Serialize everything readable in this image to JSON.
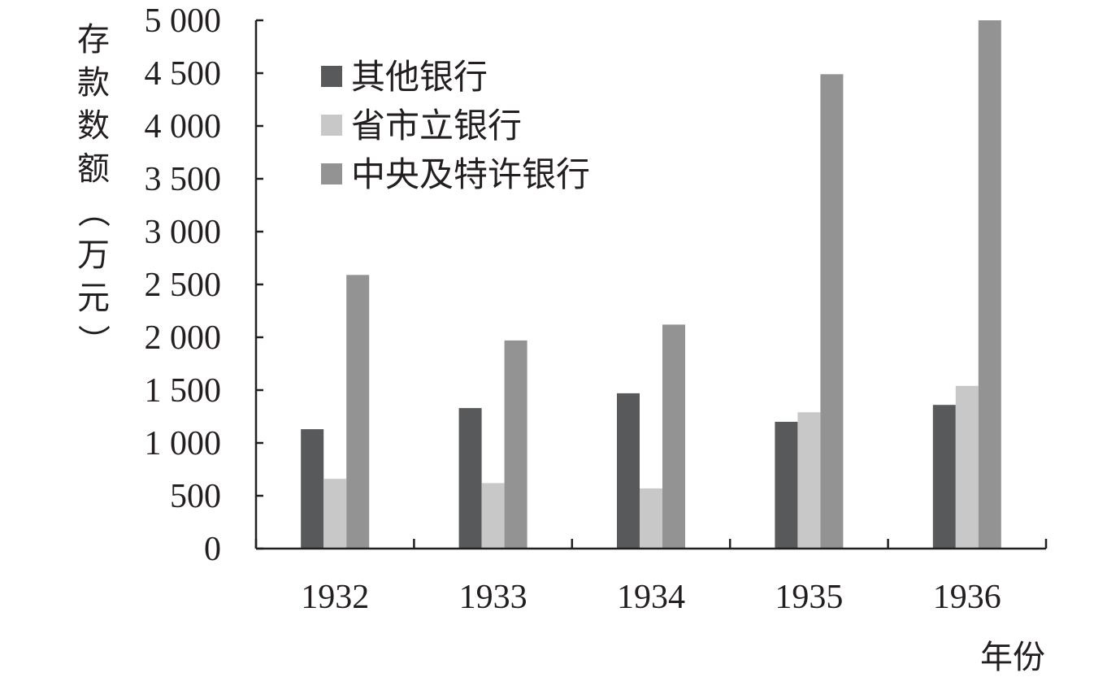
{
  "chart_data": {
    "type": "bar",
    "title": "",
    "xlabel": "年份",
    "ylabel": "存款数额（万元）",
    "ylim": [
      0,
      5000
    ],
    "yticks": [
      0,
      500,
      1000,
      1500,
      2000,
      2500,
      3000,
      3500,
      4000,
      4500,
      5000
    ],
    "ytick_labels": [
      "0",
      "500",
      "1 000",
      "1 500",
      "2 000",
      "2 500",
      "3 000",
      "3 500",
      "4 000",
      "4 500",
      "5 000"
    ],
    "categories": [
      "1932",
      "1933",
      "1934",
      "1935",
      "1936"
    ],
    "series": [
      {
        "name": "其他银行",
        "color": "#58595b",
        "values": [
          1130,
          1330,
          1470,
          1200,
          1360
        ]
      },
      {
        "name": "省市立银行",
        "color": "#c8c8c8",
        "values": [
          660,
          620,
          570,
          1290,
          1540
        ]
      },
      {
        "name": "中央及特许银行",
        "color": "#939393",
        "values": [
          2590,
          1970,
          2120,
          4490,
          5000
        ]
      }
    ],
    "legend_position": "top-left",
    "grid": false
  }
}
